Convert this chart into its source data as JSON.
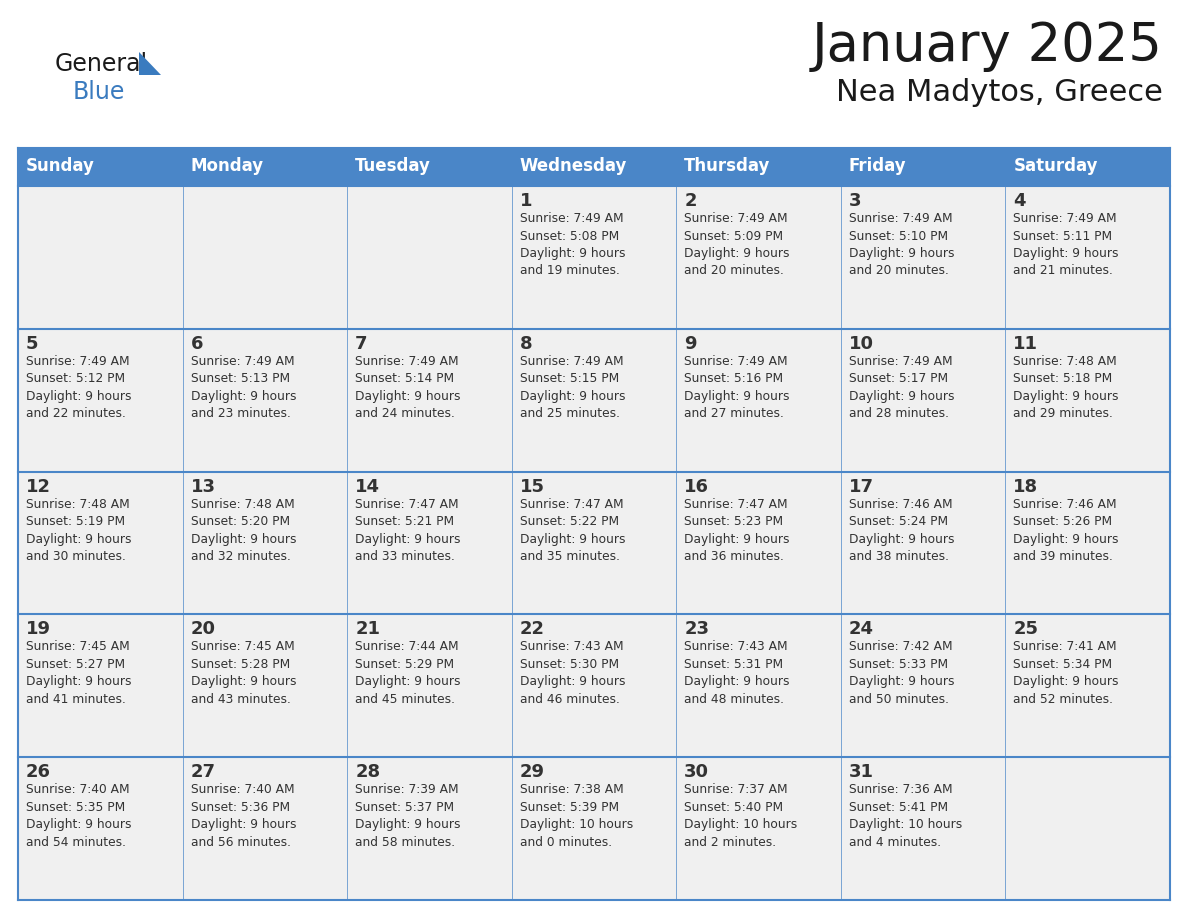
{
  "title": "January 2025",
  "subtitle": "Nea Madytos, Greece",
  "days_of_week": [
    "Sunday",
    "Monday",
    "Tuesday",
    "Wednesday",
    "Thursday",
    "Friday",
    "Saturday"
  ],
  "header_bg": "#4a86c8",
  "header_text_color": "#ffffff",
  "cell_bg": "#f0f0f0",
  "border_color": "#4a86c8",
  "text_color": "#333333",
  "title_color": "#1a1a1a",
  "logo_general_color": "#1a1a1a",
  "logo_blue_color": "#3a7bbf",
  "calendar_data": [
    [
      {
        "day": "",
        "info": ""
      },
      {
        "day": "",
        "info": ""
      },
      {
        "day": "",
        "info": ""
      },
      {
        "day": "1",
        "info": "Sunrise: 7:49 AM\nSunset: 5:08 PM\nDaylight: 9 hours\nand 19 minutes."
      },
      {
        "day": "2",
        "info": "Sunrise: 7:49 AM\nSunset: 5:09 PM\nDaylight: 9 hours\nand 20 minutes."
      },
      {
        "day": "3",
        "info": "Sunrise: 7:49 AM\nSunset: 5:10 PM\nDaylight: 9 hours\nand 20 minutes."
      },
      {
        "day": "4",
        "info": "Sunrise: 7:49 AM\nSunset: 5:11 PM\nDaylight: 9 hours\nand 21 minutes."
      }
    ],
    [
      {
        "day": "5",
        "info": "Sunrise: 7:49 AM\nSunset: 5:12 PM\nDaylight: 9 hours\nand 22 minutes."
      },
      {
        "day": "6",
        "info": "Sunrise: 7:49 AM\nSunset: 5:13 PM\nDaylight: 9 hours\nand 23 minutes."
      },
      {
        "day": "7",
        "info": "Sunrise: 7:49 AM\nSunset: 5:14 PM\nDaylight: 9 hours\nand 24 minutes."
      },
      {
        "day": "8",
        "info": "Sunrise: 7:49 AM\nSunset: 5:15 PM\nDaylight: 9 hours\nand 25 minutes."
      },
      {
        "day": "9",
        "info": "Sunrise: 7:49 AM\nSunset: 5:16 PM\nDaylight: 9 hours\nand 27 minutes."
      },
      {
        "day": "10",
        "info": "Sunrise: 7:49 AM\nSunset: 5:17 PM\nDaylight: 9 hours\nand 28 minutes."
      },
      {
        "day": "11",
        "info": "Sunrise: 7:48 AM\nSunset: 5:18 PM\nDaylight: 9 hours\nand 29 minutes."
      }
    ],
    [
      {
        "day": "12",
        "info": "Sunrise: 7:48 AM\nSunset: 5:19 PM\nDaylight: 9 hours\nand 30 minutes."
      },
      {
        "day": "13",
        "info": "Sunrise: 7:48 AM\nSunset: 5:20 PM\nDaylight: 9 hours\nand 32 minutes."
      },
      {
        "day": "14",
        "info": "Sunrise: 7:47 AM\nSunset: 5:21 PM\nDaylight: 9 hours\nand 33 minutes."
      },
      {
        "day": "15",
        "info": "Sunrise: 7:47 AM\nSunset: 5:22 PM\nDaylight: 9 hours\nand 35 minutes."
      },
      {
        "day": "16",
        "info": "Sunrise: 7:47 AM\nSunset: 5:23 PM\nDaylight: 9 hours\nand 36 minutes."
      },
      {
        "day": "17",
        "info": "Sunrise: 7:46 AM\nSunset: 5:24 PM\nDaylight: 9 hours\nand 38 minutes."
      },
      {
        "day": "18",
        "info": "Sunrise: 7:46 AM\nSunset: 5:26 PM\nDaylight: 9 hours\nand 39 minutes."
      }
    ],
    [
      {
        "day": "19",
        "info": "Sunrise: 7:45 AM\nSunset: 5:27 PM\nDaylight: 9 hours\nand 41 minutes."
      },
      {
        "day": "20",
        "info": "Sunrise: 7:45 AM\nSunset: 5:28 PM\nDaylight: 9 hours\nand 43 minutes."
      },
      {
        "day": "21",
        "info": "Sunrise: 7:44 AM\nSunset: 5:29 PM\nDaylight: 9 hours\nand 45 minutes."
      },
      {
        "day": "22",
        "info": "Sunrise: 7:43 AM\nSunset: 5:30 PM\nDaylight: 9 hours\nand 46 minutes."
      },
      {
        "day": "23",
        "info": "Sunrise: 7:43 AM\nSunset: 5:31 PM\nDaylight: 9 hours\nand 48 minutes."
      },
      {
        "day": "24",
        "info": "Sunrise: 7:42 AM\nSunset: 5:33 PM\nDaylight: 9 hours\nand 50 minutes."
      },
      {
        "day": "25",
        "info": "Sunrise: 7:41 AM\nSunset: 5:34 PM\nDaylight: 9 hours\nand 52 minutes."
      }
    ],
    [
      {
        "day": "26",
        "info": "Sunrise: 7:40 AM\nSunset: 5:35 PM\nDaylight: 9 hours\nand 54 minutes."
      },
      {
        "day": "27",
        "info": "Sunrise: 7:40 AM\nSunset: 5:36 PM\nDaylight: 9 hours\nand 56 minutes."
      },
      {
        "day": "28",
        "info": "Sunrise: 7:39 AM\nSunset: 5:37 PM\nDaylight: 9 hours\nand 58 minutes."
      },
      {
        "day": "29",
        "info": "Sunrise: 7:38 AM\nSunset: 5:39 PM\nDaylight: 10 hours\nand 0 minutes."
      },
      {
        "day": "30",
        "info": "Sunrise: 7:37 AM\nSunset: 5:40 PM\nDaylight: 10 hours\nand 2 minutes."
      },
      {
        "day": "31",
        "info": "Sunrise: 7:36 AM\nSunset: 5:41 PM\nDaylight: 10 hours\nand 4 minutes."
      },
      {
        "day": "",
        "info": ""
      }
    ]
  ]
}
